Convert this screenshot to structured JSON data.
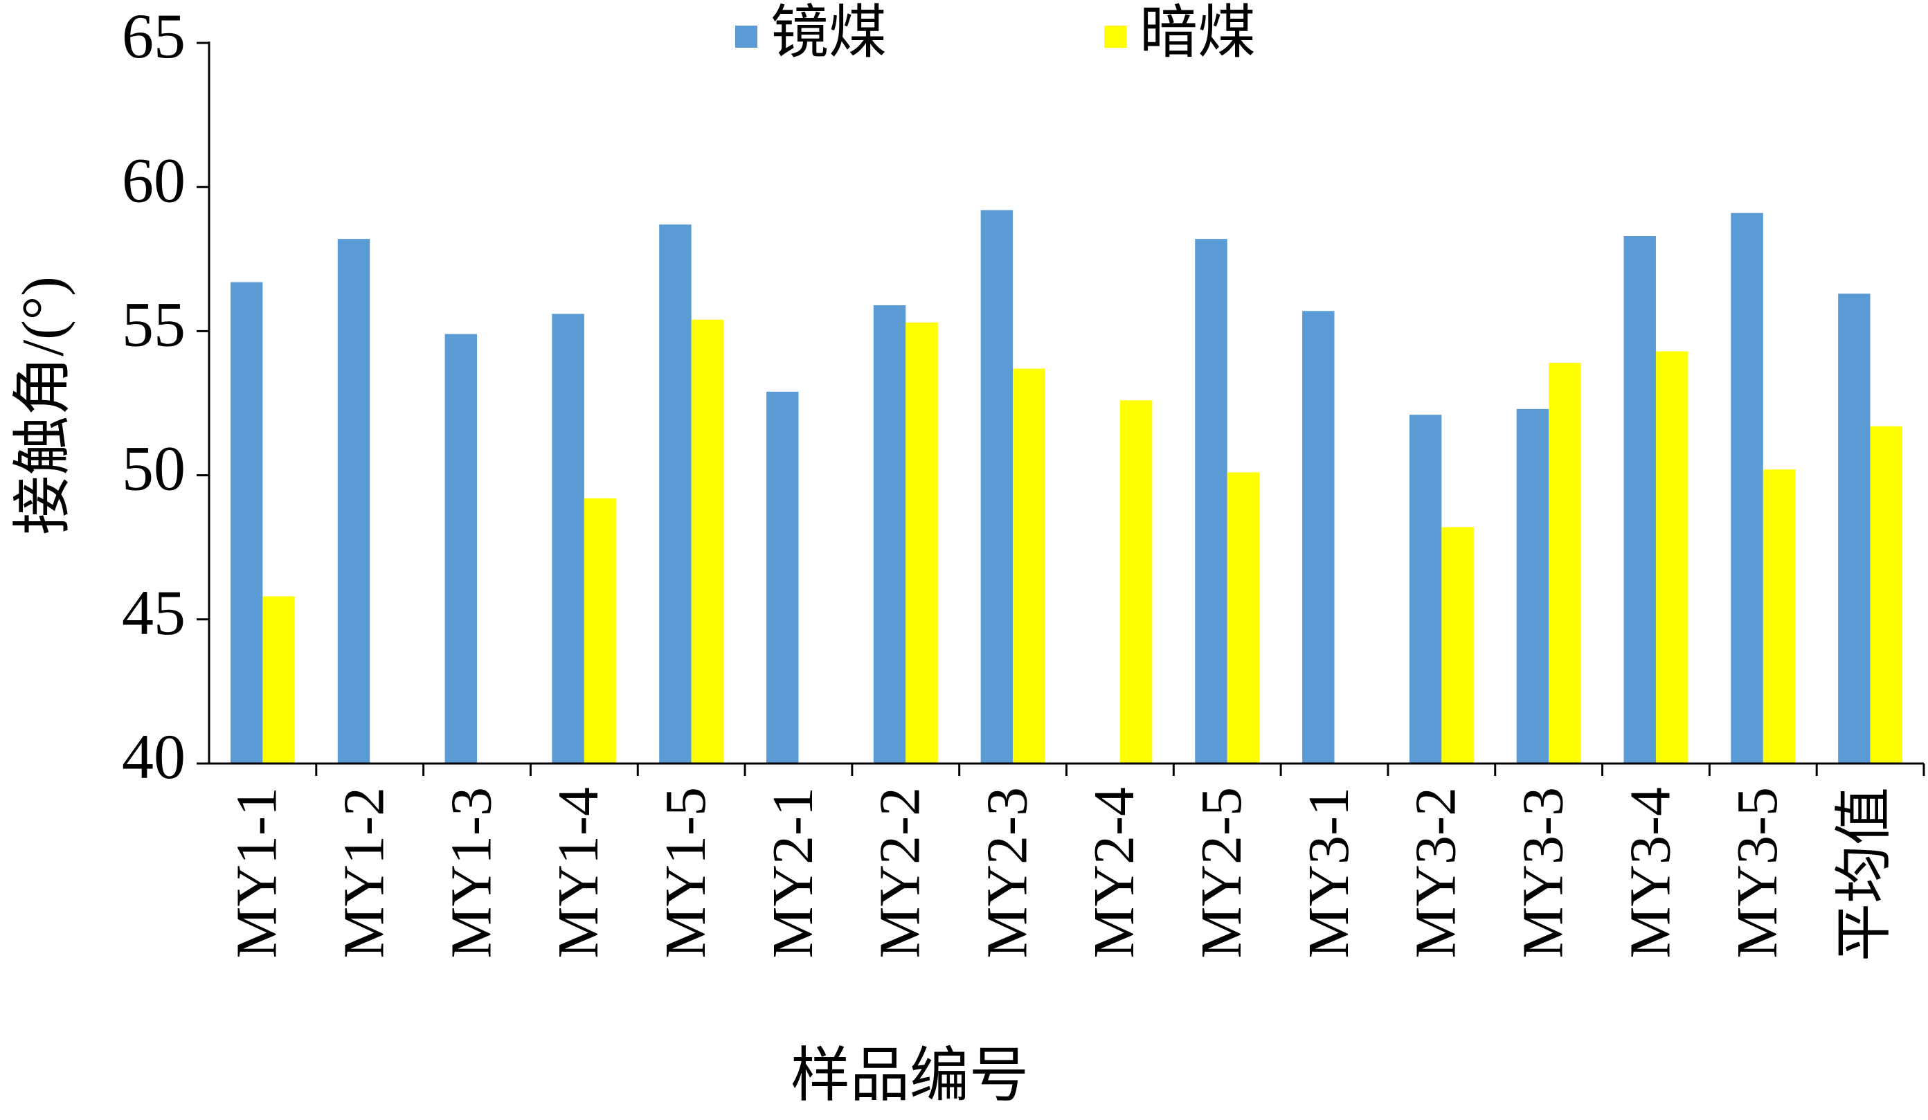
{
  "chart_data": {
    "type": "bar",
    "x_label": "样品编号",
    "y_label": "接触角/(°)",
    "categories": [
      "MY1-1",
      "MY1-2",
      "MY1-3",
      "MY1-4",
      "MY1-5",
      "MY2-1",
      "MY2-2",
      "MY2-3",
      "MY2-4",
      "MY2-5",
      "MY3-1",
      "MY3-2",
      "MY3-3",
      "MY3-4",
      "MY3-5",
      "平均值"
    ],
    "series": [
      {
        "name": "镜煤",
        "color": "#5b9bd5",
        "values": [
          56.7,
          58.2,
          54.9,
          55.6,
          58.7,
          52.9,
          55.9,
          59.2,
          null,
          58.2,
          55.7,
          52.1,
          52.3,
          58.3,
          59.1,
          56.3
        ]
      },
      {
        "name": "暗煤",
        "color": "#ffff00",
        "values": [
          45.8,
          null,
          null,
          49.2,
          55.4,
          null,
          55.3,
          53.7,
          52.6,
          50.1,
          null,
          48.2,
          53.9,
          54.3,
          50.2,
          51.7
        ]
      }
    ],
    "ylim": [
      40,
      65
    ],
    "yticks": [
      40,
      45,
      50,
      55,
      60,
      65
    ],
    "legend": "top",
    "grid": false
  }
}
